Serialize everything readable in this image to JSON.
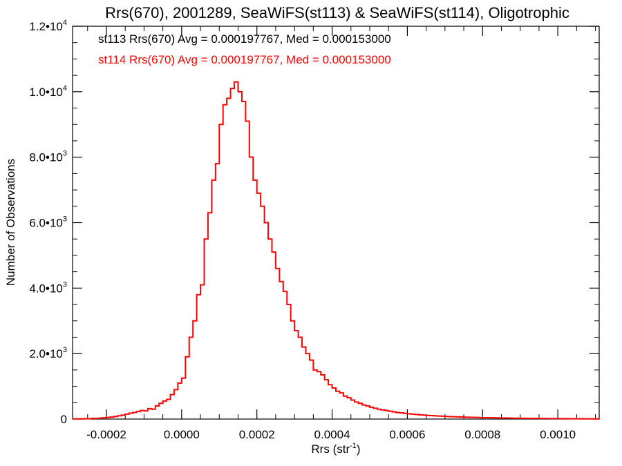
{
  "chart_data": {
    "type": "histogram",
    "title": "Rrs(670), 2001289, SeaWiFS(st113) & SeaWiFS(st114), Oligotrophic",
    "xlabel": "Rrs (str",
    "xlabel_sup": "-1",
    "xlabel_suffix": ")",
    "ylabel": "Number of Observations",
    "xlim": [
      -0.00029,
      0.00111
    ],
    "ylim": [
      0,
      12000
    ],
    "x_ticks": [
      {
        "value": -0.0002,
        "label": "-0.0002"
      },
      {
        "value": 0.0,
        "label": "0.0000"
      },
      {
        "value": 0.0002,
        "label": "0.0002"
      },
      {
        "value": 0.0004,
        "label": "0.0004"
      },
      {
        "value": 0.0006,
        "label": "0.0006"
      },
      {
        "value": 0.0008,
        "label": "0.0008"
      },
      {
        "value": 0.001,
        "label": "0.0010"
      }
    ],
    "y_ticks": [
      {
        "value": 0,
        "mant": "0",
        "exp": ""
      },
      {
        "value": 2000,
        "mant": "2.0•10",
        "exp": "3"
      },
      {
        "value": 4000,
        "mant": "4.0•10",
        "exp": "3"
      },
      {
        "value": 6000,
        "mant": "6.0•10",
        "exp": "3"
      },
      {
        "value": 8000,
        "mant": "8.0•10",
        "exp": "3"
      },
      {
        "value": 10000,
        "mant": "1.0•10",
        "exp": "4"
      },
      {
        "value": 12000,
        "mant": "1.2•10",
        "exp": "4"
      }
    ],
    "annotations": [
      {
        "text": "st113 Rrs(670) Avg = 0.000197767, Med = 0.000153000",
        "color": "#000000"
      },
      {
        "text": "st114 Rrs(670) Avg = 0.000197767, Med = 0.000153000",
        "color": "#ff0000"
      }
    ],
    "series": [
      {
        "name": "st114",
        "color": "#ff0000",
        "step": "center",
        "points": [
          [
            -0.000285,
            5
          ],
          [
            -0.000275,
            5
          ],
          [
            -0.000265,
            5
          ],
          [
            -0.000255,
            10
          ],
          [
            -0.000245,
            10
          ],
          [
            -0.000235,
            20
          ],
          [
            -0.000225,
            20
          ],
          [
            -0.000215,
            30
          ],
          [
            -0.000205,
            40
          ],
          [
            -0.000195,
            50
          ],
          [
            -0.000185,
            60
          ],
          [
            -0.000175,
            80
          ],
          [
            -0.000165,
            100
          ],
          [
            -0.000155,
            120
          ],
          [
            -0.000145,
            150
          ],
          [
            -0.000135,
            180
          ],
          [
            -0.000125,
            200
          ],
          [
            -0.000115,
            230
          ],
          [
            -0.000105,
            260
          ],
          [
            -9.5e-05,
            250
          ],
          [
            -8.5e-05,
            320
          ],
          [
            -7.5e-05,
            300
          ],
          [
            -6.5e-05,
            400
          ],
          [
            -5.5e-05,
            480
          ],
          [
            -4.5e-05,
            550
          ],
          [
            -3.5e-05,
            600
          ],
          [
            -2.5e-05,
            750
          ],
          [
            -1.5e-05,
            900
          ],
          [
            -5e-06,
            1100
          ],
          [
            5e-06,
            1250
          ],
          [
            1.5e-05,
            1900
          ],
          [
            2.5e-05,
            2500
          ],
          [
            3.5e-05,
            3000
          ],
          [
            4.5e-05,
            3800
          ],
          [
            5.5e-05,
            4100
          ],
          [
            6.5e-05,
            5500
          ],
          [
            7.5e-05,
            6300
          ],
          [
            8.5e-05,
            7300
          ],
          [
            9.5e-05,
            7800
          ],
          [
            0.000105,
            9000
          ],
          [
            0.000115,
            9600
          ],
          [
            0.000125,
            9800
          ],
          [
            0.000135,
            10100
          ],
          [
            0.000145,
            10300
          ],
          [
            0.000155,
            10000
          ],
          [
            0.000165,
            9700
          ],
          [
            0.000175,
            9100
          ],
          [
            0.000185,
            8000
          ],
          [
            0.000195,
            7300
          ],
          [
            0.000205,
            6900
          ],
          [
            0.000215,
            6500
          ],
          [
            0.000225,
            6000
          ],
          [
            0.000235,
            5500
          ],
          [
            0.000245,
            5100
          ],
          [
            0.000255,
            4600
          ],
          [
            0.000265,
            4200
          ],
          [
            0.000275,
            3900
          ],
          [
            0.000285,
            3500
          ],
          [
            0.000295,
            3000
          ],
          [
            0.000305,
            2700
          ],
          [
            0.000315,
            2500
          ],
          [
            0.000325,
            2200
          ],
          [
            0.000335,
            2000
          ],
          [
            0.000345,
            1800
          ],
          [
            0.000355,
            1500
          ],
          [
            0.000365,
            1450
          ],
          [
            0.000375,
            1350
          ],
          [
            0.000385,
            1200
          ],
          [
            0.000395,
            1050
          ],
          [
            0.000405,
            950
          ],
          [
            0.000415,
            850
          ],
          [
            0.000425,
            800
          ],
          [
            0.000435,
            700
          ],
          [
            0.000445,
            650
          ],
          [
            0.000455,
            580
          ],
          [
            0.000465,
            520
          ],
          [
            0.000475,
            480
          ],
          [
            0.000485,
            430
          ],
          [
            0.000495,
            400
          ],
          [
            0.000505,
            360
          ],
          [
            0.000515,
            330
          ],
          [
            0.000525,
            300
          ],
          [
            0.000535,
            280
          ],
          [
            0.000545,
            260
          ],
          [
            0.000555,
            240
          ],
          [
            0.000565,
            220
          ],
          [
            0.000575,
            200
          ],
          [
            0.000585,
            190
          ],
          [
            0.000595,
            175
          ],
          [
            0.000605,
            160
          ],
          [
            0.000615,
            150
          ],
          [
            0.000625,
            140
          ],
          [
            0.000635,
            130
          ],
          [
            0.000645,
            120
          ],
          [
            0.000655,
            112
          ],
          [
            0.000665,
            105
          ],
          [
            0.000675,
            98
          ],
          [
            0.000685,
            92
          ],
          [
            0.000695,
            86
          ],
          [
            0.000705,
            80
          ],
          [
            0.000715,
            75
          ],
          [
            0.000725,
            70
          ],
          [
            0.000735,
            66
          ],
          [
            0.000745,
            62
          ],
          [
            0.000755,
            58
          ],
          [
            0.000765,
            55
          ],
          [
            0.000775,
            52
          ],
          [
            0.000785,
            49
          ],
          [
            0.000795,
            46
          ],
          [
            0.000805,
            43
          ],
          [
            0.000815,
            41
          ],
          [
            0.000825,
            39
          ],
          [
            0.000835,
            37
          ],
          [
            0.000845,
            35
          ],
          [
            0.000855,
            33
          ],
          [
            0.000865,
            31
          ],
          [
            0.000875,
            29
          ],
          [
            0.000885,
            27
          ],
          [
            0.000895,
            25
          ],
          [
            0.000905,
            24
          ],
          [
            0.000915,
            23
          ],
          [
            0.000925,
            22
          ],
          [
            0.000935,
            21
          ],
          [
            0.000945,
            20
          ],
          [
            0.000955,
            19
          ],
          [
            0.000965,
            18
          ],
          [
            0.000975,
            17
          ],
          [
            0.000985,
            16
          ],
          [
            0.000995,
            15
          ],
          [
            0.001005,
            14
          ],
          [
            0.001015,
            13
          ],
          [
            0.001025,
            12
          ],
          [
            0.001035,
            11
          ],
          [
            0.001045,
            10
          ],
          [
            0.001055,
            10
          ],
          [
            0.001065,
            9
          ],
          [
            0.001075,
            8
          ],
          [
            0.001085,
            8
          ],
          [
            0.001095,
            7
          ],
          [
            0.001105,
            6
          ]
        ]
      }
    ]
  }
}
